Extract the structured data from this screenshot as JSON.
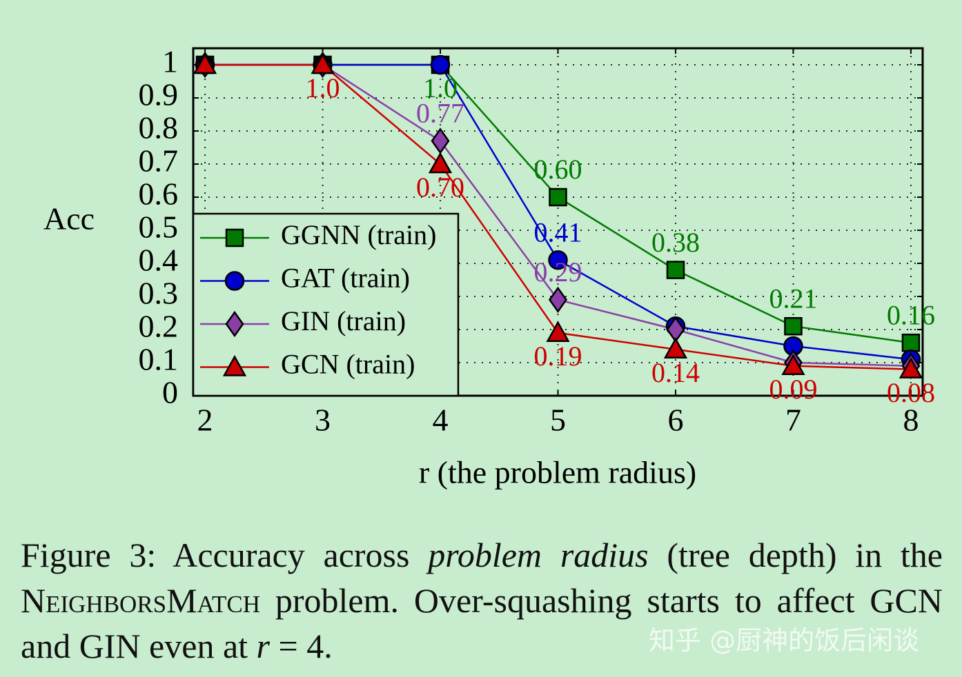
{
  "chart_data": {
    "type": "line",
    "ylabel": "Acc",
    "xlabel": "r (the problem radius)",
    "x": [
      2,
      3,
      4,
      5,
      6,
      7,
      8
    ],
    "xlim": [
      1.9,
      8.1
    ],
    "xticks": [
      2,
      3,
      4,
      5,
      6,
      7,
      8
    ],
    "ylim": [
      0,
      1.05
    ],
    "yticks": [
      0,
      0.1,
      0.2,
      0.3,
      0.4,
      0.5,
      0.6,
      0.7,
      0.8,
      0.9,
      1
    ],
    "grid": true,
    "legend": "lower left",
    "series": [
      {
        "name": "GGNN (train)",
        "color": "#007a00",
        "marker": "square",
        "values": [
          1,
          1,
          1,
          0.6,
          0.38,
          0.21,
          0.16
        ],
        "value_labels": [
          null,
          null,
          "1.0",
          "0.60",
          "0.38",
          "0.21",
          "0.16"
        ]
      },
      {
        "name": "GAT (train)",
        "color": "#0000cc",
        "marker": "circle",
        "values": [
          1,
          1,
          1,
          0.41,
          0.21,
          0.15,
          0.11
        ],
        "value_labels": [
          null,
          null,
          null,
          "0.41",
          null,
          null,
          null
        ]
      },
      {
        "name": "GIN (train)",
        "color": "#8a3fa8",
        "marker": "diamond",
        "values": [
          1,
          1,
          0.77,
          0.29,
          0.2,
          0.1,
          0.09
        ],
        "value_labels": [
          null,
          null,
          "0.77",
          "0.29",
          null,
          null,
          null
        ]
      },
      {
        "name": "GCN (train)",
        "color": "#cc0000",
        "marker": "triangle",
        "values": [
          1,
          1,
          0.7,
          0.19,
          0.14,
          0.09,
          0.08
        ],
        "value_labels": [
          null,
          "1.0",
          "0.70",
          "0.19",
          "0.14",
          "0.09",
          "0.08"
        ]
      }
    ]
  },
  "caption": [
    "Figure 3: Accuracy across ",
    "problem radius",
    " (tree depth) in the ",
    "NeighborsMatch",
    " problem. Over-squashing starts to affect GCN and GIN even at ",
    "r",
    " = 4."
  ],
  "watermark": "知乎 @厨神的饭后闲谈"
}
